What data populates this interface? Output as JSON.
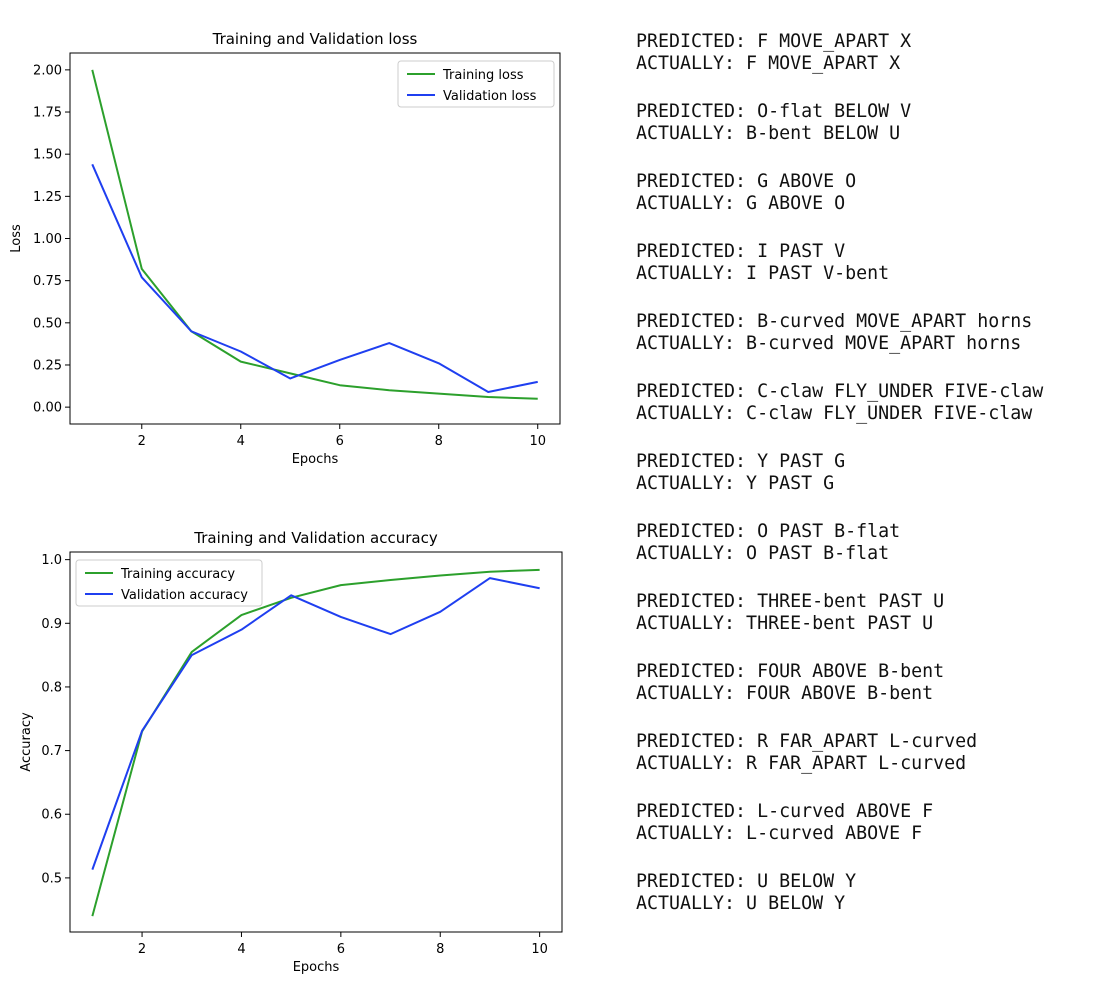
{
  "chart_data": [
    {
      "type": "line",
      "title": "Training and Validation loss",
      "xlabel": "Epochs",
      "ylabel": "Loss",
      "x": [
        1,
        2,
        3,
        4,
        5,
        6,
        7,
        8,
        9,
        10
      ],
      "xticks": [
        "2",
        "4",
        "6",
        "8",
        "10"
      ],
      "yticks": [
        "0.00",
        "0.25",
        "0.50",
        "0.75",
        "1.00",
        "1.25",
        "1.50",
        "1.75",
        "2.00"
      ],
      "xlim": [
        0.55,
        10.45
      ],
      "ylim": [
        -0.1,
        2.1
      ],
      "grid": false,
      "legend_position": "top-right",
      "series": [
        {
          "name": "Training loss",
          "color": "#2ca02c",
          "values": [
            2.0,
            0.82,
            0.45,
            0.27,
            0.2,
            0.13,
            0.1,
            0.08,
            0.06,
            0.05
          ]
        },
        {
          "name": "Validation loss",
          "color": "#1f3ff0",
          "values": [
            1.44,
            0.77,
            0.45,
            0.33,
            0.17,
            0.28,
            0.38,
            0.26,
            0.09,
            0.15
          ]
        }
      ]
    },
    {
      "type": "line",
      "title": "Training and Validation accuracy",
      "xlabel": "Epochs",
      "ylabel": "Accuracy",
      "x": [
        1,
        2,
        3,
        4,
        5,
        6,
        7,
        8,
        9,
        10
      ],
      "xticks": [
        "2",
        "4",
        "6",
        "8",
        "10"
      ],
      "yticks": [
        "0.5",
        "0.6",
        "0.7",
        "0.8",
        "0.9",
        "1.0"
      ],
      "xlim": [
        0.55,
        10.45
      ],
      "ylim": [
        0.415,
        1.012
      ],
      "grid": false,
      "legend_position": "top-left",
      "series": [
        {
          "name": "Training accuracy",
          "color": "#2ca02c",
          "values": [
            0.44,
            0.73,
            0.855,
            0.913,
            0.94,
            0.96,
            0.968,
            0.975,
            0.981,
            0.984
          ]
        },
        {
          "name": "Validation accuracy",
          "color": "#1f3ff0",
          "values": [
            0.513,
            0.731,
            0.85,
            0.89,
            0.944,
            0.91,
            0.883,
            0.918,
            0.971,
            0.955
          ]
        }
      ]
    }
  ],
  "predictions": [
    {
      "predicted": "PREDICTED: F MOVE_APART X",
      "actual": "ACTUALLY: F MOVE_APART X"
    },
    {
      "predicted": "PREDICTED: O-flat BELOW V",
      "actual": "ACTUALLY: B-bent BELOW U"
    },
    {
      "predicted": "PREDICTED: G ABOVE O",
      "actual": "ACTUALLY: G ABOVE O"
    },
    {
      "predicted": "PREDICTED: I PAST V",
      "actual": "ACTUALLY: I PAST V-bent"
    },
    {
      "predicted": "PREDICTED: B-curved MOVE_APART horns",
      "actual": "ACTUALLY: B-curved MOVE_APART horns"
    },
    {
      "predicted": "PREDICTED: C-claw FLY_UNDER FIVE-claw",
      "actual": "ACTUALLY: C-claw FLY_UNDER FIVE-claw"
    },
    {
      "predicted": "PREDICTED: Y PAST G",
      "actual": "ACTUALLY: Y PAST G"
    },
    {
      "predicted": "PREDICTED: O PAST B-flat",
      "actual": "ACTUALLY: O PAST B-flat"
    },
    {
      "predicted": "PREDICTED: THREE-bent PAST U",
      "actual": "ACTUALLY: THREE-bent PAST U"
    },
    {
      "predicted": "PREDICTED: FOUR ABOVE B-bent",
      "actual": "ACTUALLY: FOUR ABOVE B-bent"
    },
    {
      "predicted": "PREDICTED: R FAR_APART L-curved",
      "actual": "ACTUALLY: R FAR_APART L-curved"
    },
    {
      "predicted": "PREDICTED: L-curved ABOVE F",
      "actual": "ACTUALLY: L-curved ABOVE F"
    },
    {
      "predicted": "PREDICTED: U BELOW Y",
      "actual": "ACTUALLY: U BELOW Y"
    }
  ]
}
